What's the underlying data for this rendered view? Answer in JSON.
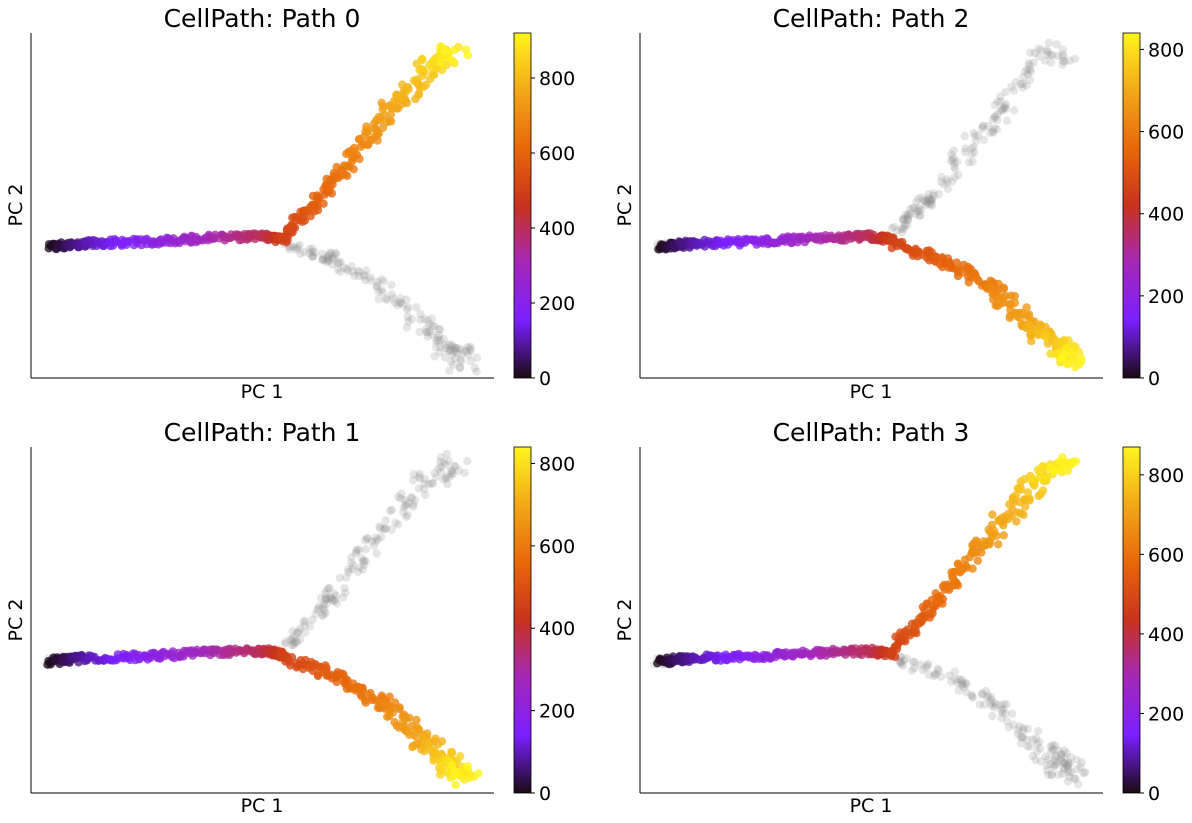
{
  "chart_data": [
    {
      "type": "scatter",
      "title": "CellPath: Path 0",
      "xlabel": "PC 1",
      "ylabel": "PC 2",
      "branch": "up",
      "colorbar": {
        "min": 0,
        "max": 920,
        "ticks": [
          0,
          200,
          400,
          600,
          800
        ]
      },
      "colormap": "gnuplot"
    },
    {
      "type": "scatter",
      "title": "CellPath: Path 2",
      "xlabel": "PC 1",
      "ylabel": "PC 2",
      "branch": "down",
      "colorbar": {
        "min": 0,
        "max": 840,
        "ticks": [
          0,
          200,
          400,
          600,
          800
        ]
      },
      "colormap": "gnuplot"
    },
    {
      "type": "scatter",
      "title": "CellPath: Path 1",
      "xlabel": "PC 1",
      "ylabel": "PC 2",
      "branch": "down",
      "colorbar": {
        "min": 0,
        "max": 840,
        "ticks": [
          0,
          200,
          400,
          600,
          800
        ]
      },
      "colormap": "gnuplot"
    },
    {
      "type": "scatter",
      "title": "CellPath: Path 3",
      "xlabel": "PC 1",
      "ylabel": "PC 2",
      "branch": "up",
      "colorbar": {
        "min": 0,
        "max": 870,
        "ticks": [
          0,
          200,
          400,
          600,
          800
        ]
      },
      "colormap": "gnuplot"
    }
  ],
  "colors": {
    "background_points": "#8c8c8c",
    "axis": "#000000",
    "cmap_stops": [
      "#1a0a14",
      "#7a1fff",
      "#a428b8",
      "#c8321e",
      "#e8680a",
      "#f2a818",
      "#fff51e"
    ]
  }
}
